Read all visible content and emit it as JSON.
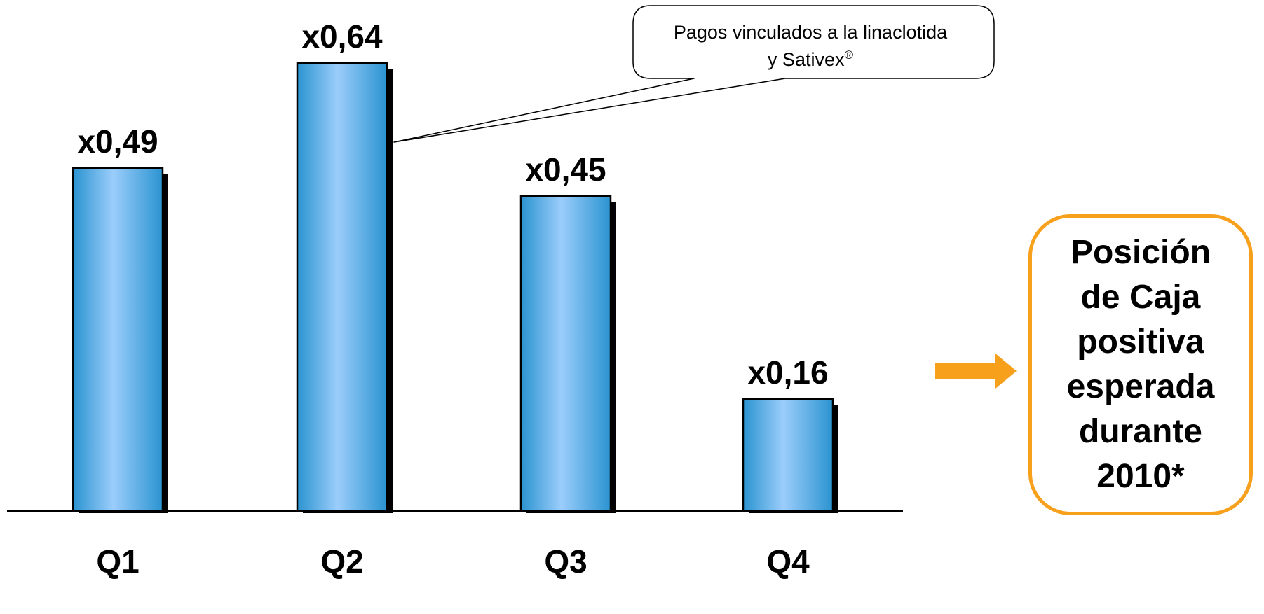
{
  "chart_data": {
    "type": "bar",
    "categories": [
      "Q1",
      "Q2",
      "Q3",
      "Q4"
    ],
    "values": [
      0.49,
      0.64,
      0.45,
      0.16
    ],
    "value_labels": [
      "x0,49",
      "x0,64",
      "x0,45",
      "x0,16"
    ],
    "title": "",
    "xlabel": "",
    "ylabel": "",
    "ylim": [
      0,
      0.7
    ],
    "grid": false,
    "legend": "none",
    "annotations": [
      {
        "category": "Q2",
        "text_line1": "Pagos vinculados a la linaclotida",
        "text_line2": "y Sativex",
        "superscript": "®"
      }
    ]
  },
  "summary": {
    "text": "Posición\nde Caja\npositiva\nesperada\ndurante\n2010*"
  },
  "colors": {
    "bar_dark": "#2a93d0",
    "bar_light": "#9bcdfb",
    "bar_shadow": "#000000",
    "accent": "#f7a01b"
  }
}
